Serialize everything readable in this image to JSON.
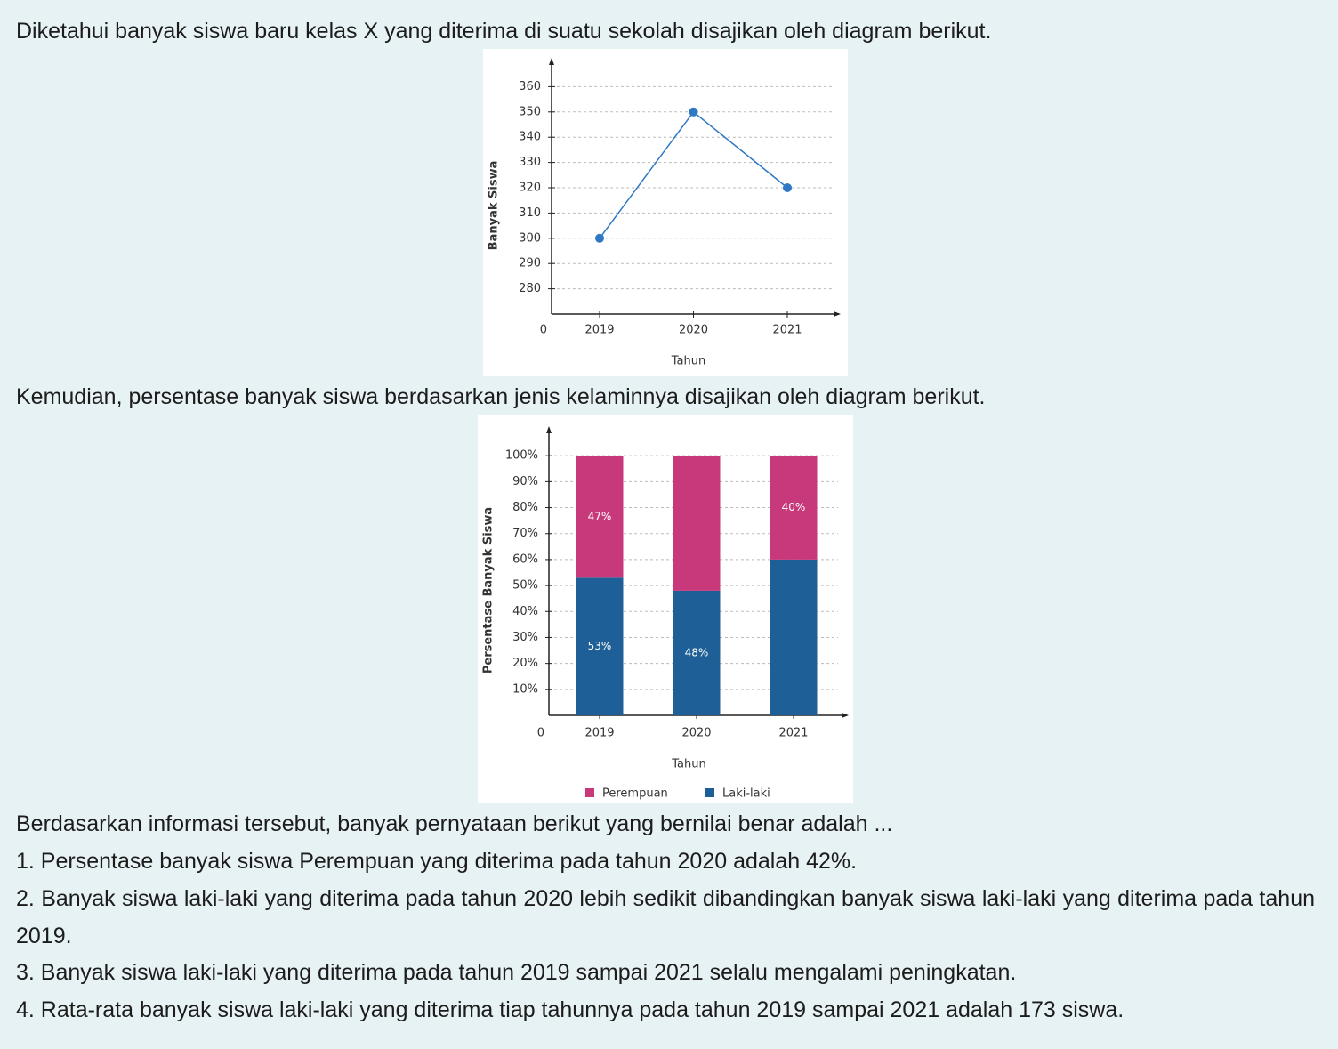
{
  "text": {
    "intro": "Diketahui banyak siswa baru kelas X yang diterima di suatu sekolah disajikan oleh diagram berikut.",
    "caption": "Kemudian, persentase banyak siswa berdasarkan jenis kelaminnya disajikan oleh diagram berikut.",
    "question": "Berdasarkan informasi tersebut, banyak pernyataan berikut yang bernilai benar adalah ...",
    "statements": [
      "1. Persentase banyak siswa Perempuan yang diterima pada tahun 2020 adalah 42%.",
      "2. Banyak siswa laki-laki yang diterima pada tahun 2020 lebih sedikit dibandingkan banyak siswa laki-laki yang diterima pada tahun 2019.",
      "3. Banyak siswa laki-laki yang diterima pada tahun 2019 sampai 2021 selalu mengalami peningkatan.",
      "4. Rata-rata banyak siswa laki-laki yang diterima tiap tahunnya pada tahun 2019 sampai 2021 adalah 173 siswa."
    ]
  },
  "chart_data": [
    {
      "type": "line",
      "ylabel": "Banyak Siswa",
      "xlabel": "Tahun",
      "origin_label": "0",
      "categories": [
        "2019",
        "2020",
        "2021"
      ],
      "values": [
        300,
        350,
        320
      ],
      "color": "#2f78c4",
      "ylim": [
        270,
        370
      ],
      "yticks": [
        280,
        290,
        300,
        310,
        320,
        330,
        340,
        350,
        360
      ],
      "grid": true
    },
    {
      "type": "stacked_bar",
      "ylabel": "Persentase Banyak Siswa",
      "xlabel": "Tahun",
      "origin_label": "0",
      "categories": [
        "2019",
        "2020",
        "2021"
      ],
      "series": [
        {
          "name": "Laki-laki",
          "color": "#1f5f97",
          "values": [
            53,
            48,
            60
          ],
          "value_labels": [
            "53%",
            "48%",
            null
          ]
        },
        {
          "name": "Perempuan",
          "color": "#c8397c",
          "values": [
            47,
            52,
            40
          ],
          "value_labels": [
            "47%",
            null,
            "40%"
          ]
        }
      ],
      "ylim": [
        0,
        110
      ],
      "yticks": [
        {
          "value": 10,
          "label": "10%"
        },
        {
          "value": 20,
          "label": "20%"
        },
        {
          "value": 30,
          "label": "30%"
        },
        {
          "value": 40,
          "label": "40%"
        },
        {
          "value": 50,
          "label": "50%"
        },
        {
          "value": 60,
          "label": "60%"
        },
        {
          "value": 70,
          "label": "70%"
        },
        {
          "value": 80,
          "label": "80%"
        },
        {
          "value": 90,
          "label": "90%"
        },
        {
          "value": 100,
          "label": "100%"
        }
      ],
      "grid": true
    }
  ]
}
